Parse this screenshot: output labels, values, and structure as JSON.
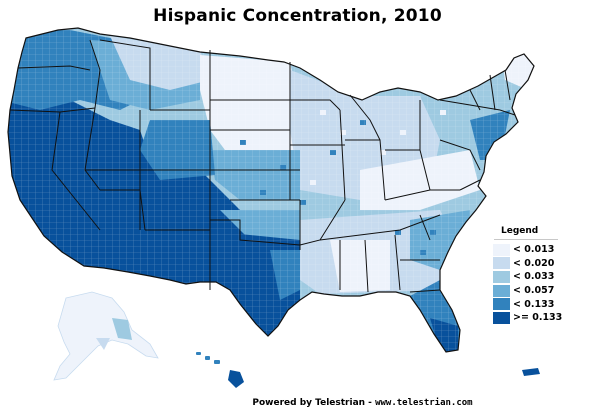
{
  "title": "Hispanic Concentration, 2010",
  "legend": {
    "title": "Legend",
    "items": [
      {
        "label": "< 0.013",
        "color": "#eef3fb"
      },
      {
        "label": "< 0.020",
        "color": "#c7dbef"
      },
      {
        "label": "< 0.033",
        "color": "#9ecae1"
      },
      {
        "label": "< 0.057",
        "color": "#6baed6"
      },
      {
        "label": "< 0.133",
        "color": "#3182bd"
      },
      {
        "label": ">= 0.133",
        "color": "#08519c"
      }
    ]
  },
  "footer": {
    "prefix": "Powered by Telestrian - ",
    "domain": "www.telestrian.com"
  },
  "colors": {
    "state_border": "#111111",
    "county_border": "#ffffff",
    "background": "#ffffff"
  }
}
